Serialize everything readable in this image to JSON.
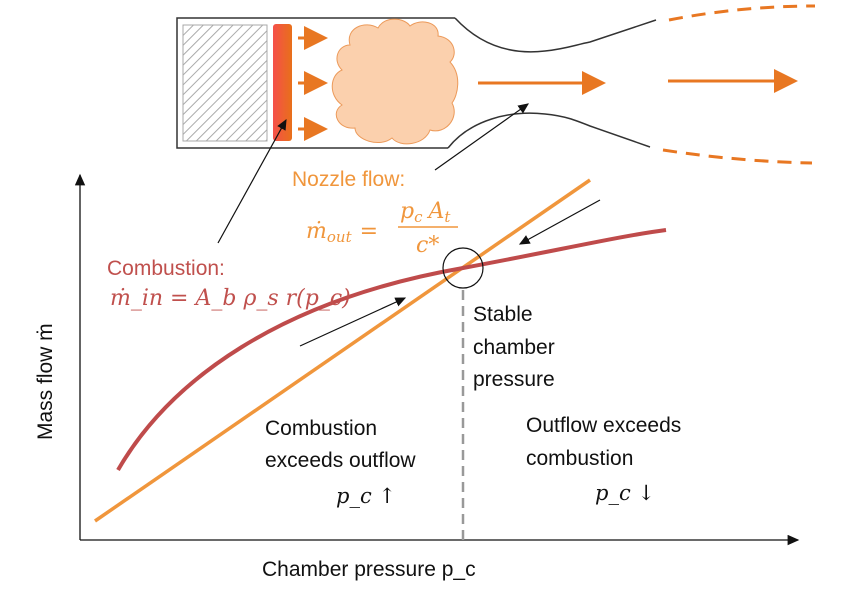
{
  "colors": {
    "nozzle": "#f0963c",
    "combustion": "#bf4b4b",
    "flow": "#e87722",
    "cloud": "#fbd0ad",
    "grain_burn": "#f05a3a"
  },
  "nozzle_label": "Nozzle flow:",
  "nozzle_eq": {
    "lhs": "ṁ",
    "lhs_sub": "out",
    "eq": "=",
    "num": "p",
    "num_sub": "c",
    "num2": "A",
    "num2_sub": "t",
    "den": "c*"
  },
  "combustion_label": "Combustion:",
  "combustion_eq": "ṁ_in = A_b ρ_s r(p_c)",
  "stable": [
    "Stable",
    "chamber",
    "pressure"
  ],
  "left_region": [
    "Combustion",
    "exceeds outflow",
    "p_c ↑"
  ],
  "right_region": [
    "Outflow exceeds",
    "combustion",
    "p_c ↓"
  ],
  "x_axis_label": "Chamber pressure p_c",
  "y_axis_label": "Mass flow ṁ"
}
